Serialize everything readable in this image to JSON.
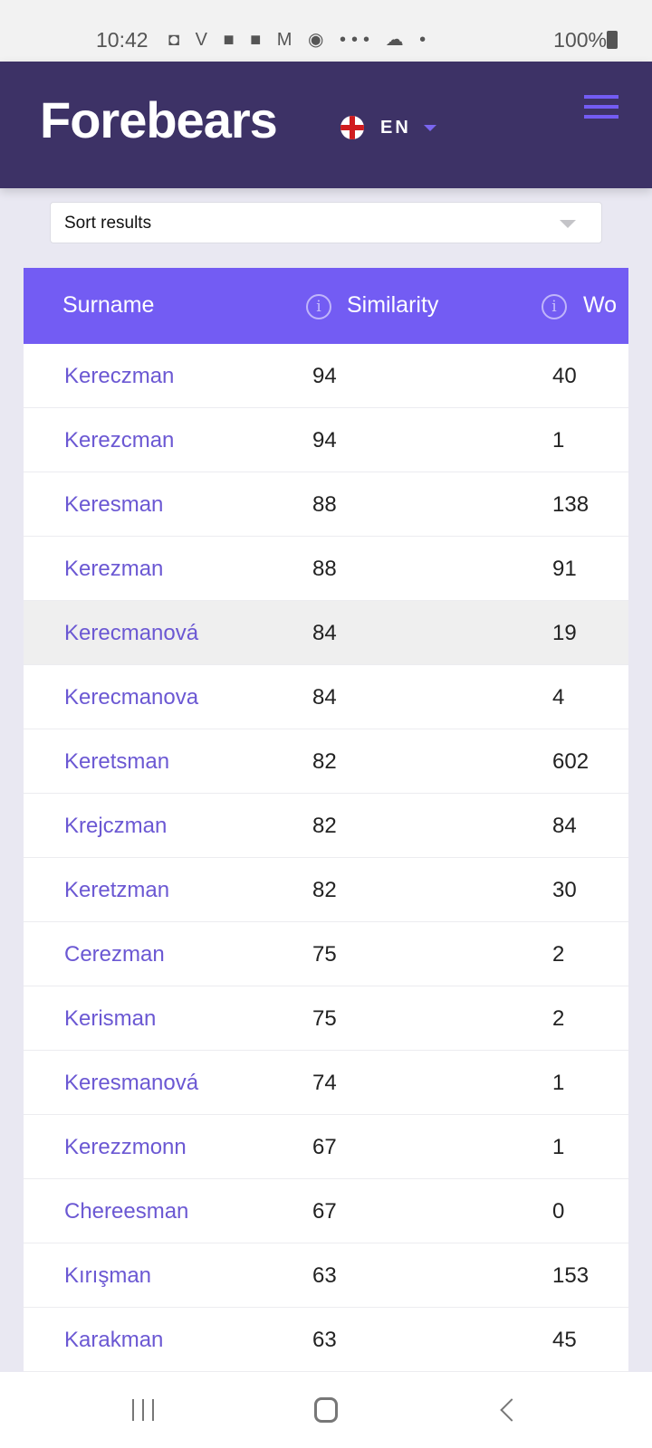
{
  "status_bar": {
    "time": "10:42",
    "battery": "100%"
  },
  "header": {
    "logo": "Forebears",
    "language": "EN"
  },
  "sort": {
    "label": "Sort results"
  },
  "table": {
    "columns": [
      "Surname",
      "Similarity",
      "Wo"
    ],
    "rows": [
      {
        "surname": "Kereczman",
        "similarity": "94",
        "wo": "40"
      },
      {
        "surname": "Kerezcman",
        "similarity": "94",
        "wo": "1"
      },
      {
        "surname": "Keresman",
        "similarity": "88",
        "wo": "138"
      },
      {
        "surname": "Kerezman",
        "similarity": "88",
        "wo": "91"
      },
      {
        "surname": "Kerecmanová",
        "similarity": "84",
        "wo": "19"
      },
      {
        "surname": "Kerecmanova",
        "similarity": "84",
        "wo": "4"
      },
      {
        "surname": "Keretsman",
        "similarity": "82",
        "wo": "602"
      },
      {
        "surname": "Krejczman",
        "similarity": "82",
        "wo": "84"
      },
      {
        "surname": "Keretzman",
        "similarity": "82",
        "wo": "30"
      },
      {
        "surname": "Cerezman",
        "similarity": "75",
        "wo": "2"
      },
      {
        "surname": "Kerisman",
        "similarity": "75",
        "wo": "2"
      },
      {
        "surname": "Keresmanová",
        "similarity": "74",
        "wo": "1"
      },
      {
        "surname": "Kerezzmonn",
        "similarity": "67",
        "wo": "1"
      },
      {
        "surname": "Chereesman",
        "similarity": "67",
        "wo": "0"
      },
      {
        "surname": "Kırışman",
        "similarity": "63",
        "wo": "153"
      },
      {
        "surname": "Karakman",
        "similarity": "63",
        "wo": "45"
      }
    ]
  },
  "colors": {
    "header_bg": "#3d3266",
    "accent": "#735cf3",
    "link": "#6b58d3"
  }
}
